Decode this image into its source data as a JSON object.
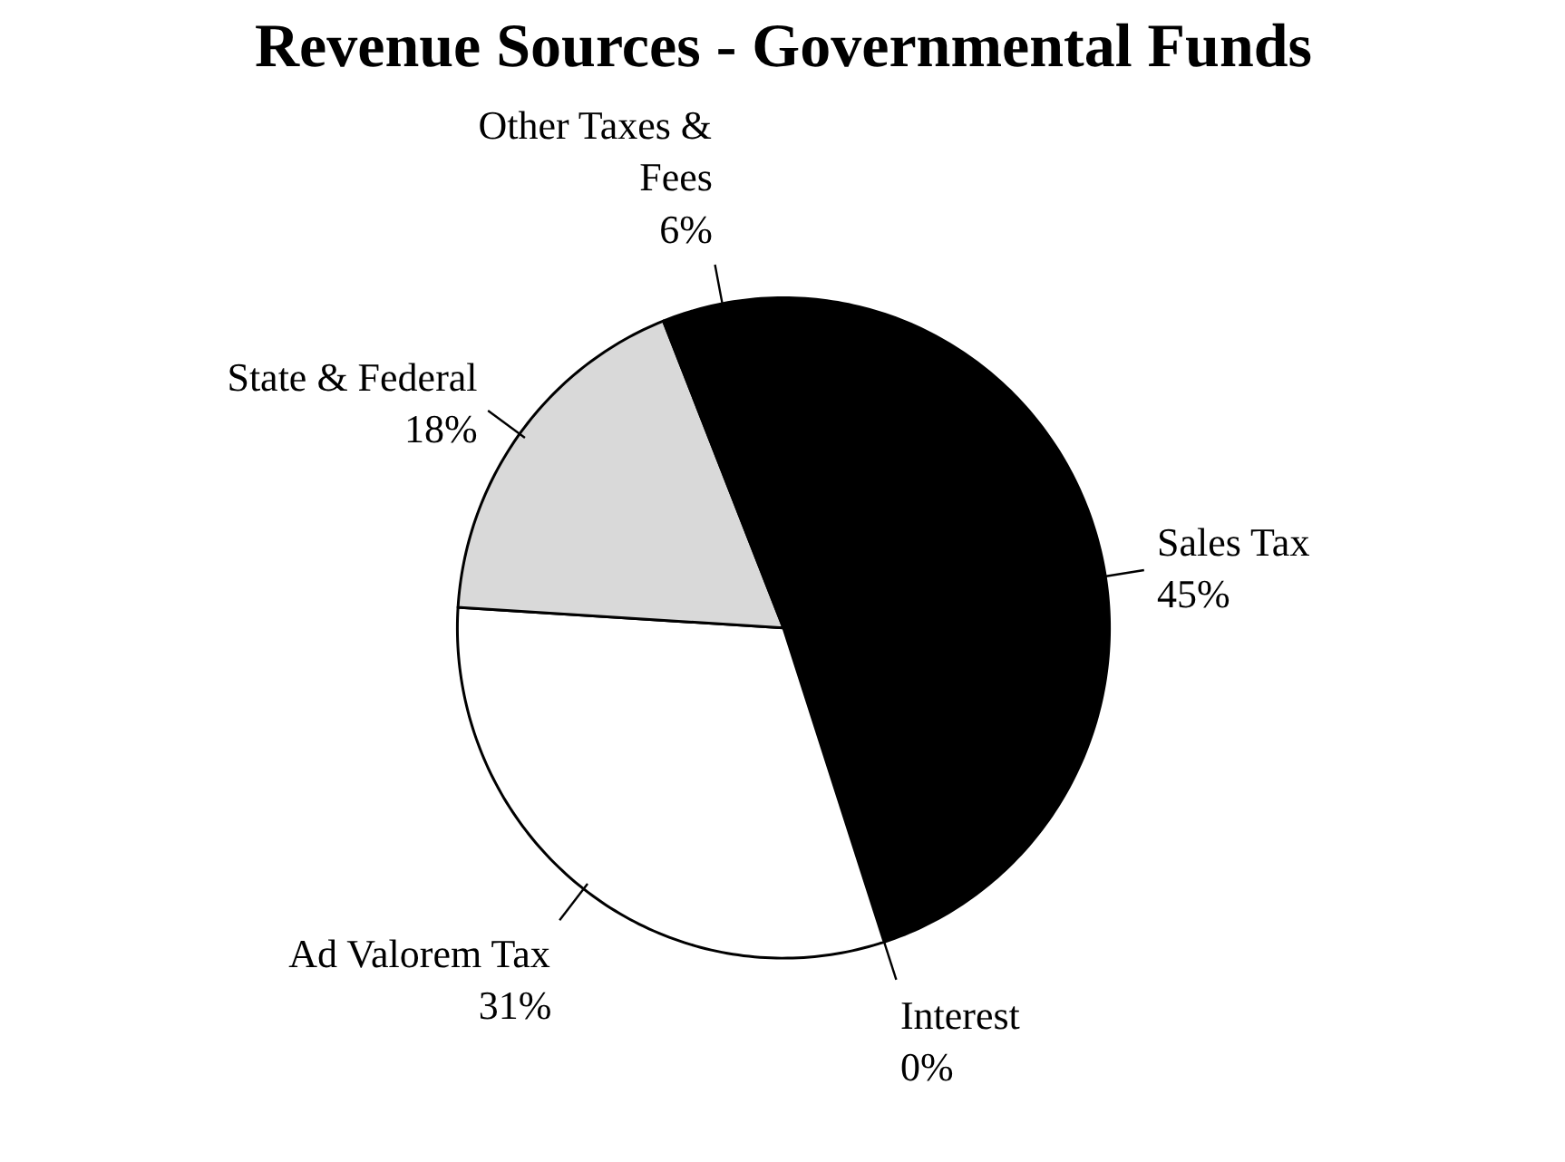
{
  "chart_data": {
    "type": "pie",
    "title": "Revenue Sources - Governmental Funds",
    "categories": [
      "Sales Tax",
      "Interest",
      "Ad Valorem Tax",
      "State & Federal",
      "Other Taxes & Fees"
    ],
    "values": [
      45,
      0,
      31,
      18,
      6
    ],
    "colors": [
      "#000000",
      "#000000",
      "#ffffff",
      "#d9d9d9",
      "#000000"
    ],
    "value_labels": [
      "45%",
      "0%",
      "31%",
      "18%",
      "6%"
    ]
  }
}
